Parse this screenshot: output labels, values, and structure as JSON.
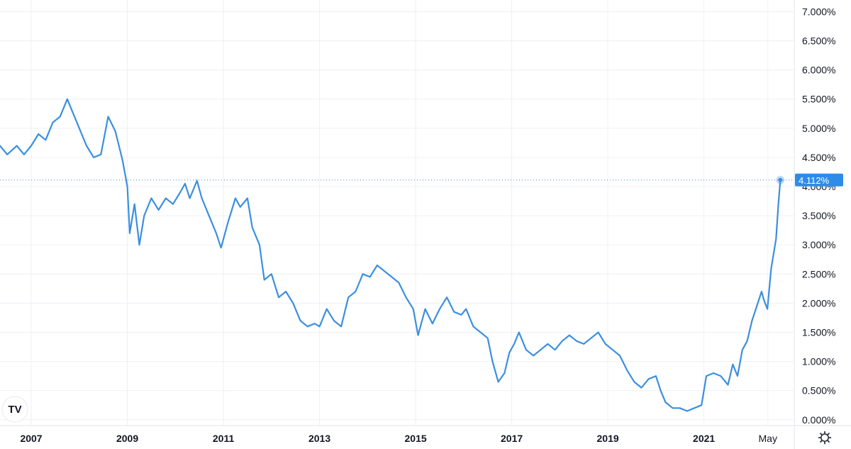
{
  "chart_data": {
    "type": "line",
    "title": "",
    "xlabel": "",
    "ylabel": "",
    "x_range": [
      2006.35,
      2022.88
    ],
    "ylim": [
      -0.1,
      7.2
    ],
    "grid": true,
    "y_ticks": [
      {
        "value": 0.0,
        "label": "0.000%"
      },
      {
        "value": 0.5,
        "label": "0.500%"
      },
      {
        "value": 1.0,
        "label": "1.000%"
      },
      {
        "value": 1.5,
        "label": "1.500%"
      },
      {
        "value": 2.0,
        "label": "2.000%"
      },
      {
        "value": 2.5,
        "label": "2.500%"
      },
      {
        "value": 3.0,
        "label": "3.000%"
      },
      {
        "value": 3.5,
        "label": "3.500%"
      },
      {
        "value": 4.0,
        "label": "4.000%"
      },
      {
        "value": 4.5,
        "label": "4.500%"
      },
      {
        "value": 5.0,
        "label": "5.000%"
      },
      {
        "value": 5.5,
        "label": "5.500%"
      },
      {
        "value": 6.0,
        "label": "6.000%"
      },
      {
        "value": 6.5,
        "label": "6.500%"
      },
      {
        "value": 7.0,
        "label": "7.000%"
      }
    ],
    "x_ticks": [
      {
        "value": 2007.0,
        "label": "2007",
        "bold": true
      },
      {
        "value": 2009.0,
        "label": "2009",
        "bold": true
      },
      {
        "value": 2011.0,
        "label": "2011",
        "bold": true
      },
      {
        "value": 2013.0,
        "label": "2013",
        "bold": true
      },
      {
        "value": 2015.0,
        "label": "2015",
        "bold": true
      },
      {
        "value": 2017.0,
        "label": "2017",
        "bold": true
      },
      {
        "value": 2019.0,
        "label": "2019",
        "bold": true
      },
      {
        "value": 2021.0,
        "label": "2021",
        "bold": true
      },
      {
        "value": 2022.33,
        "label": "May",
        "bold": false
      }
    ],
    "series": [
      {
        "color": "#3b8fe0",
        "points": [
          [
            2006.35,
            4.7
          ],
          [
            2006.5,
            4.55
          ],
          [
            2006.7,
            4.7
          ],
          [
            2006.85,
            4.55
          ],
          [
            2007.0,
            4.7
          ],
          [
            2007.15,
            4.9
          ],
          [
            2007.3,
            4.8
          ],
          [
            2007.45,
            5.1
          ],
          [
            2007.6,
            5.2
          ],
          [
            2007.75,
            5.5
          ],
          [
            2007.85,
            5.3
          ],
          [
            2008.0,
            5.0
          ],
          [
            2008.15,
            4.7
          ],
          [
            2008.3,
            4.5
          ],
          [
            2008.45,
            4.55
          ],
          [
            2008.6,
            5.2
          ],
          [
            2008.75,
            4.95
          ],
          [
            2008.9,
            4.45
          ],
          [
            2009.0,
            4.0
          ],
          [
            2009.05,
            3.2
          ],
          [
            2009.15,
            3.7
          ],
          [
            2009.25,
            3.0
          ],
          [
            2009.35,
            3.5
          ],
          [
            2009.5,
            3.8
          ],
          [
            2009.65,
            3.6
          ],
          [
            2009.8,
            3.8
          ],
          [
            2009.95,
            3.7
          ],
          [
            2010.1,
            3.9
          ],
          [
            2010.2,
            4.05
          ],
          [
            2010.3,
            3.8
          ],
          [
            2010.45,
            4.1
          ],
          [
            2010.55,
            3.8
          ],
          [
            2010.7,
            3.5
          ],
          [
            2010.85,
            3.2
          ],
          [
            2010.95,
            2.95
          ],
          [
            2011.1,
            3.4
          ],
          [
            2011.25,
            3.8
          ],
          [
            2011.35,
            3.65
          ],
          [
            2011.5,
            3.8
          ],
          [
            2011.6,
            3.3
          ],
          [
            2011.75,
            3.0
          ],
          [
            2011.85,
            2.4
          ],
          [
            2012.0,
            2.5
          ],
          [
            2012.15,
            2.1
          ],
          [
            2012.3,
            2.2
          ],
          [
            2012.45,
            2.0
          ],
          [
            2012.6,
            1.7
          ],
          [
            2012.75,
            1.6
          ],
          [
            2012.9,
            1.65
          ],
          [
            2013.0,
            1.6
          ],
          [
            2013.15,
            1.9
          ],
          [
            2013.3,
            1.7
          ],
          [
            2013.45,
            1.6
          ],
          [
            2013.6,
            2.1
          ],
          [
            2013.75,
            2.2
          ],
          [
            2013.9,
            2.5
          ],
          [
            2014.05,
            2.45
          ],
          [
            2014.2,
            2.65
          ],
          [
            2014.35,
            2.55
          ],
          [
            2014.5,
            2.45
          ],
          [
            2014.65,
            2.35
          ],
          [
            2014.8,
            2.1
          ],
          [
            2014.95,
            1.9
          ],
          [
            2015.05,
            1.45
          ],
          [
            2015.2,
            1.9
          ],
          [
            2015.35,
            1.65
          ],
          [
            2015.5,
            1.9
          ],
          [
            2015.65,
            2.1
          ],
          [
            2015.8,
            1.85
          ],
          [
            2015.95,
            1.8
          ],
          [
            2016.05,
            1.9
          ],
          [
            2016.2,
            1.6
          ],
          [
            2016.35,
            1.5
          ],
          [
            2016.5,
            1.4
          ],
          [
            2016.6,
            1.0
          ],
          [
            2016.72,
            0.65
          ],
          [
            2016.85,
            0.8
          ],
          [
            2016.95,
            1.15
          ],
          [
            2017.05,
            1.3
          ],
          [
            2017.15,
            1.5
          ],
          [
            2017.3,
            1.2
          ],
          [
            2017.45,
            1.1
          ],
          [
            2017.6,
            1.2
          ],
          [
            2017.75,
            1.3
          ],
          [
            2017.9,
            1.2
          ],
          [
            2018.05,
            1.35
          ],
          [
            2018.2,
            1.45
          ],
          [
            2018.35,
            1.35
          ],
          [
            2018.5,
            1.3
          ],
          [
            2018.65,
            1.4
          ],
          [
            2018.8,
            1.5
          ],
          [
            2018.95,
            1.3
          ],
          [
            2019.1,
            1.2
          ],
          [
            2019.25,
            1.1
          ],
          [
            2019.4,
            0.85
          ],
          [
            2019.55,
            0.65
          ],
          [
            2019.7,
            0.55
          ],
          [
            2019.85,
            0.7
          ],
          [
            2020.0,
            0.75
          ],
          [
            2020.1,
            0.5
          ],
          [
            2020.2,
            0.3
          ],
          [
            2020.35,
            0.2
          ],
          [
            2020.5,
            0.2
          ],
          [
            2020.65,
            0.15
          ],
          [
            2020.8,
            0.2
          ],
          [
            2020.95,
            0.25
          ],
          [
            2021.05,
            0.75
          ],
          [
            2021.2,
            0.8
          ],
          [
            2021.35,
            0.75
          ],
          [
            2021.5,
            0.6
          ],
          [
            2021.6,
            0.95
          ],
          [
            2021.7,
            0.75
          ],
          [
            2021.8,
            1.2
          ],
          [
            2021.9,
            1.35
          ],
          [
            2022.0,
            1.7
          ],
          [
            2022.1,
            1.95
          ],
          [
            2022.2,
            2.2
          ],
          [
            2022.25,
            2.05
          ],
          [
            2022.32,
            1.9
          ],
          [
            2022.4,
            2.6
          ],
          [
            2022.5,
            3.1
          ],
          [
            2022.55,
            3.7
          ],
          [
            2022.59,
            4.112
          ]
        ]
      }
    ],
    "last_value": {
      "x": 2022.59,
      "value": 4.112,
      "label": "4.112%"
    },
    "line_color": "#3b8fe0",
    "label_bg_color": "#2d8ce8",
    "grid_color": "#eef0f4"
  },
  "ui": {
    "logo_text": "TV",
    "settings_icon": "gear-icon"
  }
}
